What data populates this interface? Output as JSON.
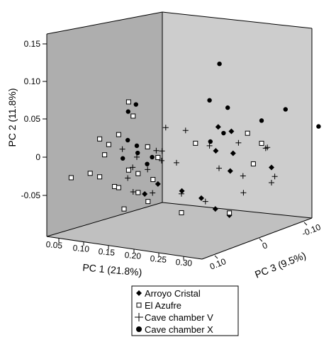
{
  "chart_data": {
    "type": "scatter",
    "projection": "3d",
    "axes": {
      "x": {
        "label": "PC 1 (21.8%)",
        "ticks": [
          "0.05",
          "0.10",
          "0.15",
          "0.20",
          "0.25",
          "0.30"
        ],
        "range": [
          0.03,
          0.35
        ]
      },
      "y": {
        "label": "PC 2 (11.8%)",
        "ticks": [
          "-0.05",
          "0",
          "0.05",
          "0.10",
          "0.15"
        ],
        "range": [
          -0.08,
          0.17
        ]
      },
      "z": {
        "label": "PC 3 (9.5%)",
        "ticks": [
          "-0.10",
          "0",
          "0.10"
        ],
        "range": [
          -0.12,
          0.12
        ]
      }
    },
    "colors": {
      "background": "#ffffff",
      "left_wall": "#aeaeae",
      "back_wall": "#cdcdcd",
      "floor": "#c0c0c0",
      "edge": "#000000",
      "marker": "#000000",
      "open_marker_fill": "#ffffff"
    },
    "legend": {
      "placement": "bottom",
      "entries": [
        {
          "label": "Arroyo Cristal",
          "marker": "diamond"
        },
        {
          "label": "El Azufre",
          "marker": "open-square"
        },
        {
          "label": "Cave chamber V",
          "marker": "plus"
        },
        {
          "label": "Cave chamber X",
          "marker": "circle"
        }
      ]
    },
    "series": [
      {
        "name": "Arroyo Cristal",
        "marker": "diamond",
        "points": [
          [
            0.22,
            0.06,
            -0.05
          ],
          [
            0.21,
            0.048,
            -0.09
          ],
          [
            0.27,
            0.041,
            0.01
          ],
          [
            0.25,
            0.028,
            -0.05
          ],
          [
            0.29,
            0.015,
            0.0
          ],
          [
            0.19,
            -0.005,
            0.05
          ],
          [
            0.22,
            -0.014,
            0.03
          ],
          [
            0.25,
            -0.022,
            0.02
          ],
          [
            0.26,
            -0.038,
            0.0
          ],
          [
            0.27,
            -0.048,
            -0.02
          ],
          [
            0.2,
            -0.012,
            0.09
          ],
          [
            0.3,
            0.01,
            -0.08
          ]
        ]
      },
      {
        "name": "El Azufre",
        "marker": "open-square",
        "points": [
          [
            0.14,
            0.1,
            0.06
          ],
          [
            0.14,
            0.08,
            0.05
          ],
          [
            0.1,
            0.05,
            0.08
          ],
          [
            0.12,
            0.055,
            0.06
          ],
          [
            0.1,
            0.04,
            0.06
          ],
          [
            0.11,
            0.03,
            0.08
          ],
          [
            0.07,
            0.0,
            0.11
          ],
          [
            0.09,
            0.005,
            0.09
          ],
          [
            0.1,
            0.0,
            0.08
          ],
          [
            0.14,
            0.01,
            0.06
          ],
          [
            0.15,
            0.005,
            0.05
          ],
          [
            0.13,
            -0.01,
            0.08
          ],
          [
            0.12,
            -0.015,
            0.06
          ],
          [
            0.15,
            -0.02,
            0.05
          ],
          [
            0.17,
            -0.03,
            0.05
          ],
          [
            0.14,
            -0.04,
            0.07
          ],
          [
            0.19,
            0.03,
            0.05
          ],
          [
            0.21,
            -0.045,
            0.02
          ],
          [
            0.27,
            -0.045,
            -0.02
          ],
          [
            0.27,
            0.055,
            -0.06
          ],
          [
            0.28,
            0.04,
            -0.08
          ],
          [
            0.22,
            0.045,
            0.0
          ],
          [
            0.16,
            0.04,
            0.04
          ],
          [
            0.18,
            0.0,
            0.05
          ],
          [
            0.3,
            0.02,
            -0.04
          ]
        ]
      },
      {
        "name": "Cave chamber V",
        "marker": "plus",
        "points": [
          [
            0.16,
            0.06,
            0.0
          ],
          [
            0.2,
            0.06,
            0.0
          ],
          [
            0.23,
            0.04,
            -0.02
          ],
          [
            0.27,
            0.045,
            -0.04
          ],
          [
            0.12,
            0.02,
            0.02
          ],
          [
            0.15,
            0.03,
            0.01
          ],
          [
            0.17,
            0.02,
            0.02
          ],
          [
            0.13,
            0.01,
            0.04
          ],
          [
            0.16,
            0.01,
            0.04
          ],
          [
            0.2,
            0.02,
            0.02
          ],
          [
            0.24,
            0.01,
            -0.03
          ],
          [
            0.27,
            0.0,
            -0.05
          ],
          [
            0.28,
            -0.02,
            -0.04
          ],
          [
            0.3,
            -0.01,
            -0.08
          ],
          [
            0.14,
            -0.02,
            0.05
          ],
          [
            0.17,
            -0.02,
            0.04
          ],
          [
            0.21,
            -0.02,
            0.02
          ],
          [
            0.24,
            -0.03,
            0.0
          ],
          [
            0.27,
            0.03,
            -0.1
          ],
          [
            0.1,
            0.03,
            0.03
          ],
          [
            0.18,
            0.035,
            0.03
          ],
          [
            0.31,
            0.04,
            -0.06
          ],
          [
            0.27,
            -0.01,
            -0.12
          ],
          [
            0.12,
            -0.005,
            0.04
          ]
        ]
      },
      {
        "name": "Cave chamber X",
        "marker": "circle",
        "points": [
          [
            0.25,
            0.15,
            -0.02
          ],
          [
            0.23,
            0.1,
            -0.02
          ],
          [
            0.1,
            0.085,
            0.0
          ],
          [
            0.13,
            0.085,
            0.05
          ],
          [
            0.23,
            0.085,
            -0.06
          ],
          [
            0.31,
            0.085,
            -0.1
          ],
          [
            0.12,
            0.045,
            0.04
          ],
          [
            0.24,
            0.055,
            -0.04
          ],
          [
            0.25,
            0.05,
            0.0
          ],
          [
            0.28,
            0.07,
            -0.08
          ],
          [
            0.34,
            0.06,
            -0.14
          ],
          [
            0.12,
            0.035,
            0.02
          ],
          [
            0.14,
            0.03,
            0.04
          ],
          [
            0.11,
            0.02,
            0.04
          ],
          [
            0.15,
            0.015,
            0.03
          ],
          [
            0.16,
            0.025,
            0.03
          ]
        ]
      }
    ]
  }
}
